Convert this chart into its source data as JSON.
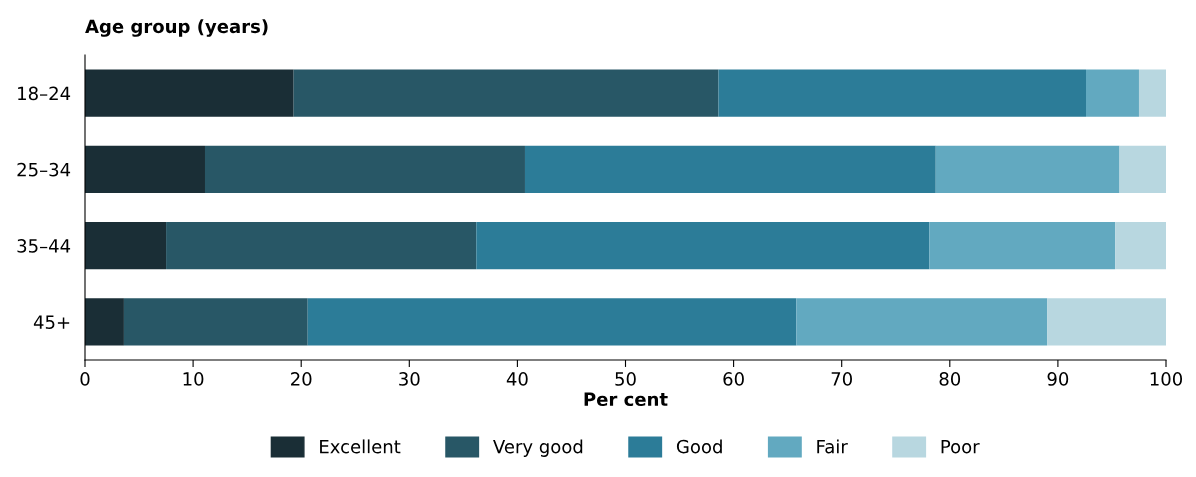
{
  "chart_data": {
    "type": "bar",
    "orientation": "horizontal",
    "stacked": true,
    "ylabel": "Age group (years)",
    "xlabel": "Per cent",
    "categories": [
      "18–24",
      "25–34",
      "35–44",
      "45+"
    ],
    "series": [
      {
        "name": "Excellent",
        "color": "#1a2e36",
        "values": [
          19.3,
          11.1,
          7.5,
          3.6
        ]
      },
      {
        "name": "Very good",
        "color": "#285766",
        "values": [
          39.3,
          29.6,
          28.7,
          17.0
        ]
      },
      {
        "name": "Good",
        "color": "#2c7c98",
        "values": [
          34.0,
          38.0,
          41.9,
          45.2
        ]
      },
      {
        "name": "Fair",
        "color": "#62a9c0",
        "values": [
          4.9,
          17.0,
          17.2,
          23.2
        ]
      },
      {
        "name": "Poor",
        "color": "#b8d7e0",
        "values": [
          2.5,
          4.3,
          4.7,
          11.0
        ]
      }
    ],
    "xlim": [
      0,
      100
    ],
    "xticks": [
      0,
      10,
      20,
      30,
      40,
      50,
      60,
      70,
      80,
      90,
      100
    ],
    "grid": false,
    "legend": "bottom"
  }
}
